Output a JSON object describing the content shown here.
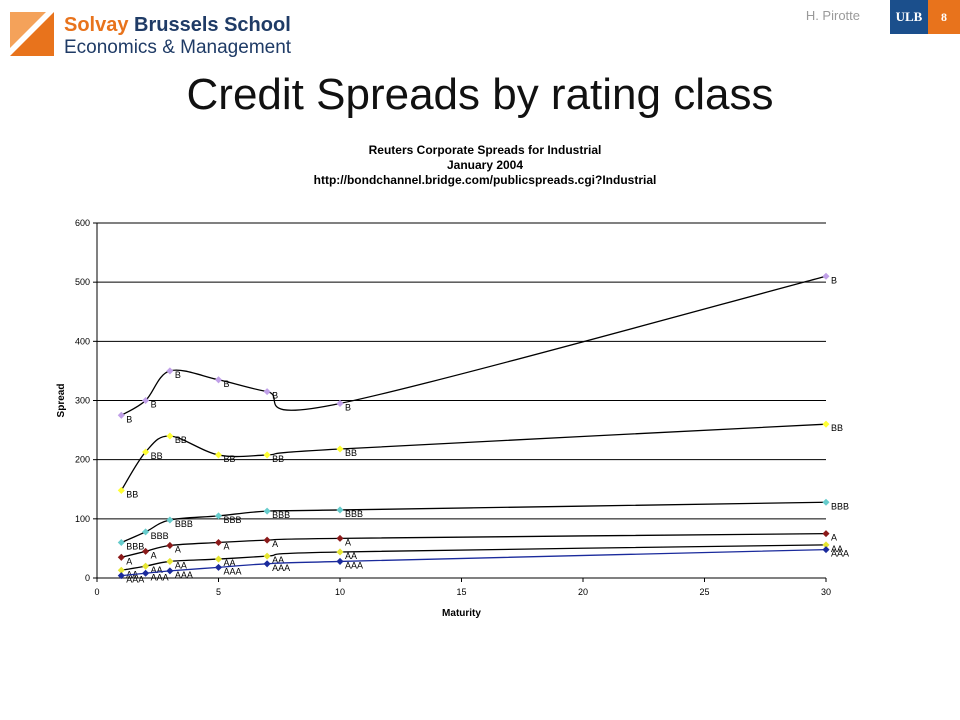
{
  "header": {
    "logo_word1": "Solvay",
    "logo_word2": "Brussels School",
    "logo_line2": "Economics & Management",
    "author": "H. Pirotte",
    "ulb": "ULB",
    "page_number": "8"
  },
  "slide_title": "Credit Spreads by rating class",
  "colors": {
    "brand_orange": "#e8731c",
    "brand_navy": "#1f3b66",
    "ulb_blue": "#1b4f8c"
  },
  "chart_data": {
    "type": "line",
    "title": "Reuters Corporate Spreads for Industrial",
    "subtitle": "January 2004",
    "source": "http://bondchannel.bridge.com/publicspreads.cgi?Industrial",
    "xlabel": "Maturity",
    "ylabel": "Spread",
    "xlim": [
      0,
      30
    ],
    "ylim": [
      0,
      600
    ],
    "xticks": [
      0,
      5,
      10,
      15,
      20,
      25,
      30
    ],
    "yticks": [
      0,
      100,
      200,
      300,
      400,
      500,
      600
    ],
    "grid": "horizontal",
    "x": [
      1,
      2,
      3,
      5,
      7,
      10,
      30
    ],
    "series": [
      {
        "name": "B",
        "color": "#c0a0e8",
        "values": [
          275,
          300,
          350,
          335,
          315,
          295,
          510
        ]
      },
      {
        "name": "BB",
        "color": "#ffff33",
        "values": [
          148,
          213,
          240,
          208,
          208,
          218,
          260
        ]
      },
      {
        "name": "BBB",
        "color": "#66cccc",
        "values": [
          60,
          78,
          98,
          105,
          113,
          115,
          128
        ]
      },
      {
        "name": "A",
        "color": "#8b1a1a",
        "values": [
          35,
          45,
          55,
          60,
          64,
          67,
          75
        ]
      },
      {
        "name": "AA",
        "color": "#e6e632",
        "values": [
          13,
          20,
          28,
          32,
          37,
          44,
          56
        ]
      },
      {
        "name": "AAA",
        "color": "#1a2a9c",
        "values": [
          4,
          8,
          12,
          18,
          24,
          28,
          48
        ]
      }
    ]
  }
}
